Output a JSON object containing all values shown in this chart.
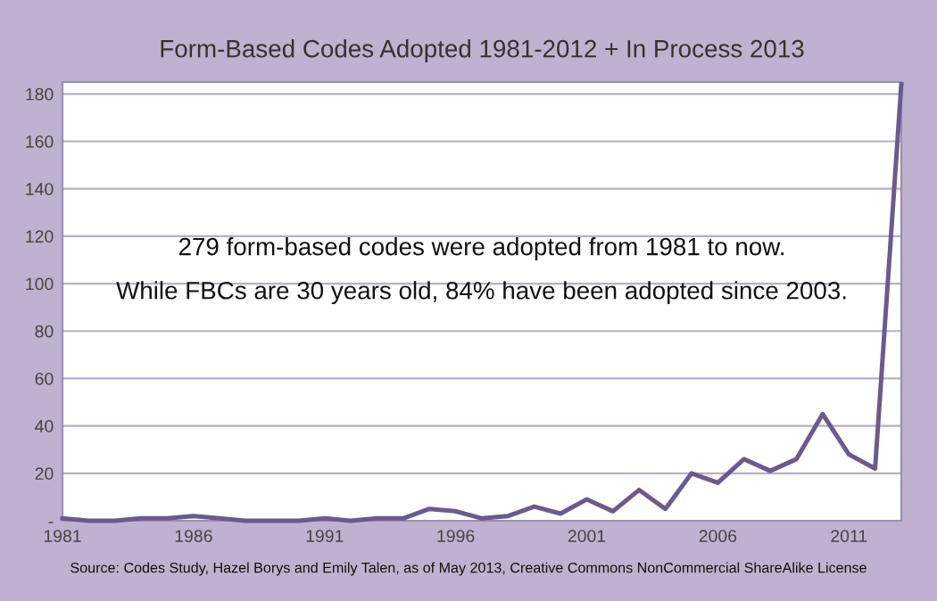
{
  "chart_data": {
    "type": "line",
    "title": "Form-Based Codes Adopted 1981-2012 + In Process 2013",
    "x": [
      1981,
      1982,
      1983,
      1984,
      1985,
      1986,
      1987,
      1988,
      1989,
      1990,
      1991,
      1992,
      1993,
      1994,
      1995,
      1996,
      1997,
      1998,
      1999,
      2000,
      2001,
      2002,
      2003,
      2004,
      2005,
      2006,
      2007,
      2008,
      2009,
      2010,
      2011,
      2012,
      2013
    ],
    "series": [
      {
        "color": "#6b5a8e",
        "values": [
          1,
          0,
          0,
          1,
          1,
          2,
          1,
          0,
          0,
          0,
          1,
          0,
          1,
          1,
          5,
          4,
          1,
          2,
          6,
          3,
          9,
          4,
          13,
          5,
          20,
          16,
          26,
          21,
          26,
          45,
          28,
          22,
          184
        ]
      }
    ],
    "xlim": [
      1981,
      2013
    ],
    "xticks": [
      1981,
      1986,
      1991,
      1996,
      2001,
      2006,
      2011
    ],
    "ylim": [
      0,
      185
    ],
    "yticks": [
      {
        "value": 0,
        "label": "-"
      },
      20,
      40,
      60,
      80,
      100,
      120,
      140,
      160,
      180
    ],
    "grid": "y",
    "marker": "none",
    "line_style": "solid",
    "legend": false,
    "annotations": [
      "279 form-based codes were adopted from 1981 to now.",
      "While FBCs are 30 years old, 84% have been adopted since 2003.",
      "Source: Codes Study, Hazel Borys and Emily Talen, as of May 2013, Creative Commons NonCommercial ShareAlike License"
    ]
  }
}
